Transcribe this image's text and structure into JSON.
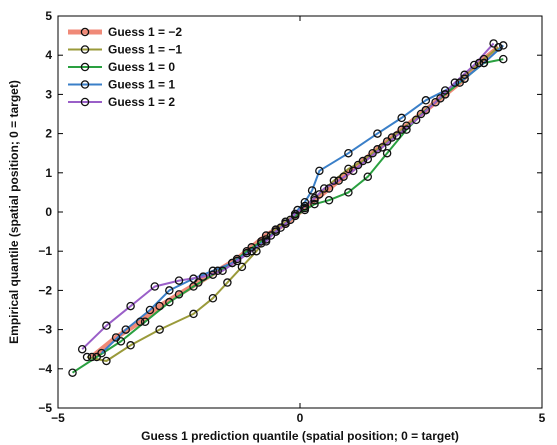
{
  "chart_data": {
    "type": "line",
    "title": "",
    "xlabel": "Guess   1 prediction quantile (spatial position; 0 = target)",
    "ylabel": "Empirical quantile (spatial position; 0 = target)",
    "xlim": [
      -5,
      5
    ],
    "ylim": [
      -5,
      5
    ],
    "xticks": [
      -5,
      0,
      5
    ],
    "yticks": [
      -5,
      -4,
      -3,
      -2,
      -1,
      0,
      1,
      2,
      3,
      4,
      5
    ],
    "xtick_labels": [
      "−5",
      "0",
      "5"
    ],
    "ytick_labels": [
      "−5",
      "−4",
      "−3",
      "−2",
      "−1",
      "0",
      "1",
      "2",
      "3",
      "4",
      "5"
    ],
    "grid": false,
    "legend_position": "top-left",
    "marker": "circle-open-black",
    "series": [
      {
        "name": "Guess 1 = −2",
        "color": "#f08a78",
        "x": [
          -4.3,
          -3.8,
          -3.3,
          -2.9,
          -2.5,
          -2.1,
          -1.7,
          -1.3,
          -1.0,
          -0.7,
          -0.5,
          -0.3,
          -0.1,
          0.1,
          0.3,
          0.6,
          0.9,
          1.2,
          1.5,
          1.8,
          2.1,
          2.5,
          2.9,
          3.3,
          3.7,
          4.1
        ],
        "y": [
          -3.7,
          -3.2,
          -2.8,
          -2.4,
          -2.1,
          -1.8,
          -1.5,
          -1.2,
          -0.9,
          -0.6,
          -0.45,
          -0.3,
          -0.1,
          0.1,
          0.3,
          0.6,
          0.9,
          1.2,
          1.5,
          1.8,
          2.1,
          2.5,
          2.9,
          3.3,
          3.8,
          4.2
        ]
      },
      {
        "name": "Guess 1 = −1",
        "color": "#9a9a3a",
        "x": [
          -4.4,
          -4.0,
          -3.5,
          -2.9,
          -2.2,
          -1.8,
          -1.5,
          -1.2,
          -0.9,
          -0.7,
          -0.5,
          -0.3,
          -0.1,
          0.1,
          0.4,
          0.7,
          1.0,
          1.3,
          1.6,
          1.9,
          2.2,
          2.6,
          3.0,
          3.4,
          3.8,
          4.1
        ],
        "y": [
          -3.7,
          -3.8,
          -3.4,
          -3.0,
          -2.6,
          -2.2,
          -1.8,
          -1.4,
          -1.0,
          -0.7,
          -0.45,
          -0.25,
          -0.05,
          0.15,
          0.45,
          0.8,
          1.1,
          1.3,
          1.6,
          1.9,
          2.2,
          2.6,
          3.0,
          3.5,
          3.9,
          4.2
        ]
      },
      {
        "name": "Guess 1 = 0",
        "color": "#2aa040",
        "x": [
          -4.7,
          -4.2,
          -3.7,
          -3.2,
          -2.7,
          -2.2,
          -1.8,
          -1.4,
          -1.1,
          -0.8,
          -0.5,
          -0.3,
          -0.1,
          0.1,
          0.3,
          0.6,
          1.0,
          1.4,
          1.8,
          2.2,
          2.6,
          3.0,
          3.4,
          3.8,
          4.2
        ],
        "y": [
          -4.1,
          -3.7,
          -3.3,
          -2.8,
          -2.3,
          -1.9,
          -1.6,
          -1.3,
          -1.0,
          -0.75,
          -0.5,
          -0.3,
          -0.1,
          0.05,
          0.2,
          0.3,
          0.5,
          0.9,
          1.5,
          2.1,
          2.6,
          3.0,
          3.4,
          3.8,
          3.9
        ]
      },
      {
        "name": "Guess 1 = 1",
        "color": "#3a7fc8",
        "x": [
          -4.1,
          -3.6,
          -3.1,
          -2.7,
          -2.2,
          -1.8,
          -1.4,
          -1.1,
          -0.8,
          -0.6,
          -0.4,
          -0.2,
          -0.05,
          0.1,
          0.25,
          0.4,
          1.0,
          1.6,
          2.1,
          2.6,
          3.0,
          3.4,
          3.8,
          4.2
        ],
        "y": [
          -3.6,
          -3.0,
          -2.5,
          -2.0,
          -1.7,
          -1.5,
          -1.3,
          -1.05,
          -0.8,
          -0.6,
          -0.4,
          -0.2,
          0.05,
          0.25,
          0.55,
          1.05,
          1.5,
          2.0,
          2.4,
          2.85,
          3.1,
          3.4,
          3.8,
          4.25
        ]
      },
      {
        "name": "Guess 1 = 2",
        "color": "#9a5fc8",
        "x": [
          -4.5,
          -4.0,
          -3.5,
          -3.0,
          -2.5,
          -2.0,
          -1.6,
          -1.3,
          -1.0,
          -0.7,
          -0.5,
          -0.3,
          -0.1,
          0.1,
          0.3,
          0.5,
          0.8,
          1.1,
          1.4,
          1.7,
          2.0,
          2.4,
          2.8,
          3.2,
          3.6,
          4.0
        ],
        "y": [
          -3.5,
          -2.9,
          -2.4,
          -1.9,
          -1.75,
          -1.65,
          -1.5,
          -1.25,
          -1.0,
          -0.75,
          -0.5,
          -0.3,
          -0.05,
          0.15,
          0.35,
          0.6,
          0.8,
          1.05,
          1.35,
          1.65,
          1.95,
          2.35,
          2.8,
          3.3,
          3.75,
          4.3
        ]
      }
    ]
  }
}
